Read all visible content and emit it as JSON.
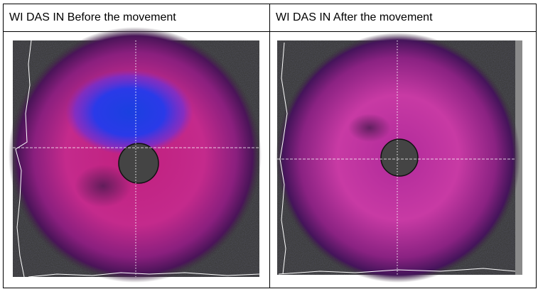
{
  "table": {
    "header": [
      "WI DAS IN Before the movement",
      "WI DAS IN After the movement"
    ]
  }
}
